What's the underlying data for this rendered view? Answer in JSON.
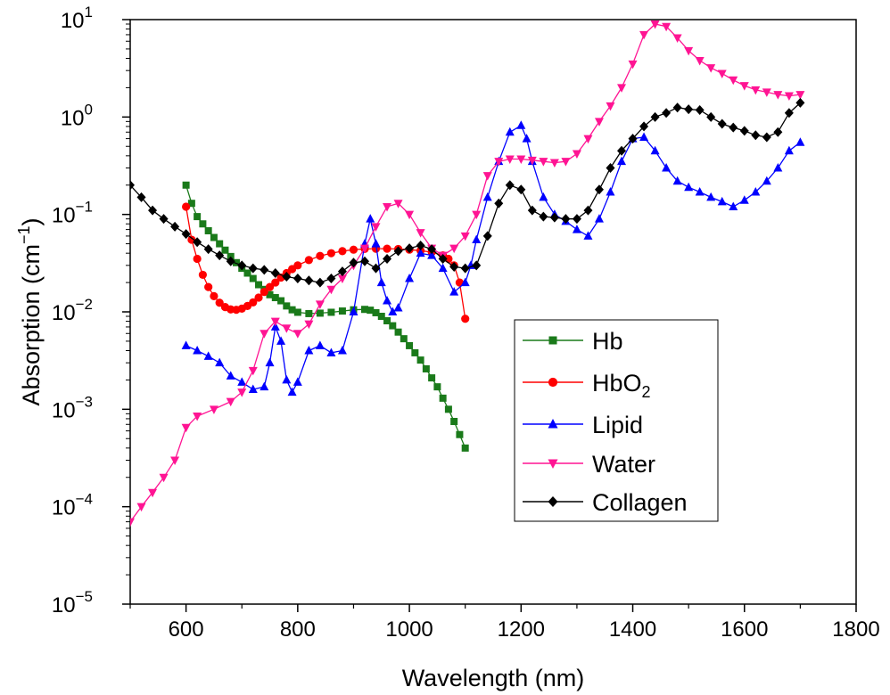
{
  "chart_data": {
    "type": "line",
    "yscale": "log",
    "xlabel": "Wavelength (nm)",
    "ylabel": {
      "base": "Absorption (cm",
      "exp": "−1",
      "close": ")"
    },
    "xlim": [
      500,
      1800
    ],
    "ylim_exp": [
      -5,
      1
    ],
    "x_ticks": [
      {
        "v": 600,
        "label": "600"
      },
      {
        "v": 800,
        "label": "800"
      },
      {
        "v": 1000,
        "label": "1000"
      },
      {
        "v": 1200,
        "label": "1200"
      },
      {
        "v": 1400,
        "label": "1400"
      },
      {
        "v": 1600,
        "label": "1600"
      },
      {
        "v": 1800,
        "label": "1800"
      }
    ],
    "y_ticks": [
      {
        "e": 1,
        "base": "10",
        "exp": "1"
      },
      {
        "e": 0,
        "base": "10",
        "exp": "0"
      },
      {
        "e": -1,
        "base": "10",
        "exp": "−1"
      },
      {
        "e": -2,
        "base": "10",
        "exp": "−2"
      },
      {
        "e": -3,
        "base": "10",
        "exp": "−3"
      },
      {
        "e": -4,
        "base": "10",
        "exp": "−4"
      },
      {
        "e": -5,
        "base": "10",
        "exp": "−5"
      }
    ],
    "series": [
      {
        "name": "Hb",
        "sub": "",
        "color": "#1a7a1a",
        "marker": "square",
        "points": [
          [
            600,
            0.2
          ],
          [
            610,
            0.13
          ],
          [
            620,
            0.095
          ],
          [
            630,
            0.08
          ],
          [
            640,
            0.068
          ],
          [
            650,
            0.058
          ],
          [
            660,
            0.05
          ],
          [
            670,
            0.043
          ],
          [
            680,
            0.037
          ],
          [
            690,
            0.032
          ],
          [
            700,
            0.028
          ],
          [
            710,
            0.025
          ],
          [
            720,
            0.022
          ],
          [
            730,
            0.019
          ],
          [
            740,
            0.017
          ],
          [
            750,
            0.015
          ],
          [
            760,
            0.014
          ],
          [
            770,
            0.013
          ],
          [
            780,
            0.0115
          ],
          [
            790,
            0.0105
          ],
          [
            800,
            0.0099
          ],
          [
            820,
            0.0096
          ],
          [
            840,
            0.0097
          ],
          [
            860,
            0.0099
          ],
          [
            880,
            0.0102
          ],
          [
            900,
            0.0105
          ],
          [
            920,
            0.0106
          ],
          [
            930,
            0.0104
          ],
          [
            940,
            0.0098
          ],
          [
            950,
            0.009
          ],
          [
            960,
            0.0081
          ],
          [
            970,
            0.0072
          ],
          [
            980,
            0.0062
          ],
          [
            990,
            0.0053
          ],
          [
            1000,
            0.0045
          ],
          [
            1010,
            0.0038
          ],
          [
            1020,
            0.0032
          ],
          [
            1030,
            0.0026
          ],
          [
            1040,
            0.0021
          ],
          [
            1050,
            0.0017
          ],
          [
            1060,
            0.0013
          ],
          [
            1070,
            0.001
          ],
          [
            1080,
            0.00075
          ],
          [
            1090,
            0.00055
          ],
          [
            1100,
            0.0004
          ]
        ]
      },
      {
        "name": "HbO",
        "sub": "2",
        "color": "#ff0000",
        "marker": "circle",
        "points": [
          [
            600,
            0.12
          ],
          [
            610,
            0.055
          ],
          [
            620,
            0.035
          ],
          [
            630,
            0.024
          ],
          [
            640,
            0.018
          ],
          [
            650,
            0.0145
          ],
          [
            660,
            0.0124
          ],
          [
            670,
            0.0112
          ],
          [
            680,
            0.0106
          ],
          [
            690,
            0.0105
          ],
          [
            700,
            0.0108
          ],
          [
            710,
            0.0115
          ],
          [
            720,
            0.0125
          ],
          [
            730,
            0.014
          ],
          [
            740,
            0.016
          ],
          [
            750,
            0.018
          ],
          [
            760,
            0.02
          ],
          [
            770,
            0.0225
          ],
          [
            780,
            0.025
          ],
          [
            790,
            0.0275
          ],
          [
            800,
            0.03
          ],
          [
            820,
            0.034
          ],
          [
            840,
            0.0375
          ],
          [
            860,
            0.04
          ],
          [
            880,
            0.042
          ],
          [
            900,
            0.0435
          ],
          [
            920,
            0.0442
          ],
          [
            940,
            0.0445
          ],
          [
            960,
            0.0445
          ],
          [
            980,
            0.0442
          ],
          [
            1000,
            0.0435
          ],
          [
            1020,
            0.0425
          ],
          [
            1040,
            0.041
          ],
          [
            1060,
            0.038
          ],
          [
            1070,
            0.035
          ],
          [
            1080,
            0.03
          ],
          [
            1090,
            0.02
          ],
          [
            1100,
            0.0085
          ]
        ]
      },
      {
        "name": "Lipid",
        "sub": "",
        "color": "#0000ff",
        "marker": "triangle-up",
        "points": [
          [
            600,
            0.0045
          ],
          [
            620,
            0.004
          ],
          [
            640,
            0.0035
          ],
          [
            660,
            0.003
          ],
          [
            680,
            0.0022
          ],
          [
            700,
            0.0019
          ],
          [
            720,
            0.0016
          ],
          [
            740,
            0.0017
          ],
          [
            750,
            0.003
          ],
          [
            760,
            0.007
          ],
          [
            770,
            0.005
          ],
          [
            780,
            0.002
          ],
          [
            790,
            0.0015
          ],
          [
            800,
            0.0019
          ],
          [
            820,
            0.004
          ],
          [
            840,
            0.0045
          ],
          [
            860,
            0.0038
          ],
          [
            880,
            0.004
          ],
          [
            900,
            0.01
          ],
          [
            920,
            0.05
          ],
          [
            930,
            0.09
          ],
          [
            940,
            0.05
          ],
          [
            950,
            0.02
          ],
          [
            960,
            0.013
          ],
          [
            970,
            0.01
          ],
          [
            980,
            0.011
          ],
          [
            1000,
            0.022
          ],
          [
            1020,
            0.04
          ],
          [
            1040,
            0.038
          ],
          [
            1060,
            0.028
          ],
          [
            1080,
            0.016
          ],
          [
            1100,
            0.02
          ],
          [
            1110,
            0.03
          ],
          [
            1120,
            0.055
          ],
          [
            1140,
            0.15
          ],
          [
            1160,
            0.35
          ],
          [
            1180,
            0.7
          ],
          [
            1200,
            0.82
          ],
          [
            1210,
            0.6
          ],
          [
            1220,
            0.35
          ],
          [
            1240,
            0.15
          ],
          [
            1260,
            0.1
          ],
          [
            1280,
            0.085
          ],
          [
            1300,
            0.07
          ],
          [
            1320,
            0.06
          ],
          [
            1340,
            0.09
          ],
          [
            1360,
            0.17
          ],
          [
            1380,
            0.35
          ],
          [
            1400,
            0.6
          ],
          [
            1420,
            0.62
          ],
          [
            1440,
            0.45
          ],
          [
            1460,
            0.3
          ],
          [
            1480,
            0.22
          ],
          [
            1500,
            0.19
          ],
          [
            1520,
            0.17
          ],
          [
            1540,
            0.15
          ],
          [
            1560,
            0.135
          ],
          [
            1580,
            0.12
          ],
          [
            1600,
            0.14
          ],
          [
            1620,
            0.17
          ],
          [
            1640,
            0.22
          ],
          [
            1660,
            0.3
          ],
          [
            1680,
            0.45
          ],
          [
            1700,
            0.55
          ]
        ]
      },
      {
        "name": "Water",
        "sub": "",
        "color": "#ff1493",
        "marker": "triangle-down",
        "points": [
          [
            500,
            7e-05
          ],
          [
            520,
            0.0001
          ],
          [
            540,
            0.00014
          ],
          [
            560,
            0.0002
          ],
          [
            580,
            0.0003
          ],
          [
            600,
            0.00065
          ],
          [
            620,
            0.00085
          ],
          [
            650,
            0.001
          ],
          [
            680,
            0.0012
          ],
          [
            700,
            0.0015
          ],
          [
            720,
            0.0025
          ],
          [
            740,
            0.006
          ],
          [
            760,
            0.008
          ],
          [
            780,
            0.0068
          ],
          [
            800,
            0.006
          ],
          [
            820,
            0.0075
          ],
          [
            840,
            0.012
          ],
          [
            860,
            0.017
          ],
          [
            880,
            0.022
          ],
          [
            900,
            0.03
          ],
          [
            920,
            0.045
          ],
          [
            940,
            0.075
          ],
          [
            960,
            0.12
          ],
          [
            980,
            0.13
          ],
          [
            1000,
            0.1
          ],
          [
            1020,
            0.065
          ],
          [
            1040,
            0.045
          ],
          [
            1060,
            0.038
          ],
          [
            1080,
            0.045
          ],
          [
            1100,
            0.06
          ],
          [
            1120,
            0.1
          ],
          [
            1140,
            0.25
          ],
          [
            1160,
            0.35
          ],
          [
            1180,
            0.37
          ],
          [
            1200,
            0.37
          ],
          [
            1220,
            0.36
          ],
          [
            1240,
            0.35
          ],
          [
            1260,
            0.34
          ],
          [
            1280,
            0.35
          ],
          [
            1300,
            0.42
          ],
          [
            1320,
            0.6
          ],
          [
            1340,
            0.9
          ],
          [
            1360,
            1.3
          ],
          [
            1380,
            2.0
          ],
          [
            1400,
            3.5
          ],
          [
            1420,
            7.0
          ],
          [
            1440,
            9.0
          ],
          [
            1460,
            8.5
          ],
          [
            1480,
            6.5
          ],
          [
            1500,
            4.8
          ],
          [
            1520,
            3.8
          ],
          [
            1540,
            3.2
          ],
          [
            1560,
            2.8
          ],
          [
            1580,
            2.4
          ],
          [
            1600,
            2.1
          ],
          [
            1620,
            1.9
          ],
          [
            1640,
            1.8
          ],
          [
            1660,
            1.7
          ],
          [
            1680,
            1.65
          ],
          [
            1700,
            1.7
          ]
        ]
      },
      {
        "name": "Collagen",
        "sub": "",
        "color": "#000000",
        "marker": "diamond",
        "points": [
          [
            500,
            0.2
          ],
          [
            520,
            0.15
          ],
          [
            540,
            0.11
          ],
          [
            560,
            0.09
          ],
          [
            580,
            0.075
          ],
          [
            600,
            0.063
          ],
          [
            620,
            0.052
          ],
          [
            640,
            0.044
          ],
          [
            660,
            0.038
          ],
          [
            680,
            0.033
          ],
          [
            700,
            0.03
          ],
          [
            720,
            0.028
          ],
          [
            740,
            0.027
          ],
          [
            760,
            0.025
          ],
          [
            780,
            0.023
          ],
          [
            800,
            0.022
          ],
          [
            820,
            0.021
          ],
          [
            840,
            0.02
          ],
          [
            860,
            0.022
          ],
          [
            880,
            0.026
          ],
          [
            900,
            0.032
          ],
          [
            920,
            0.033
          ],
          [
            940,
            0.028
          ],
          [
            960,
            0.035
          ],
          [
            980,
            0.042
          ],
          [
            1000,
            0.045
          ],
          [
            1020,
            0.048
          ],
          [
            1040,
            0.044
          ],
          [
            1060,
            0.035
          ],
          [
            1080,
            0.029
          ],
          [
            1100,
            0.028
          ],
          [
            1120,
            0.03
          ],
          [
            1140,
            0.06
          ],
          [
            1160,
            0.13
          ],
          [
            1180,
            0.2
          ],
          [
            1200,
            0.18
          ],
          [
            1220,
            0.11
          ],
          [
            1240,
            0.095
          ],
          [
            1260,
            0.093
          ],
          [
            1280,
            0.09
          ],
          [
            1300,
            0.09
          ],
          [
            1320,
            0.11
          ],
          [
            1340,
            0.18
          ],
          [
            1360,
            0.3
          ],
          [
            1380,
            0.45
          ],
          [
            1400,
            0.6
          ],
          [
            1420,
            0.8
          ],
          [
            1440,
            1.0
          ],
          [
            1460,
            1.1
          ],
          [
            1480,
            1.25
          ],
          [
            1500,
            1.2
          ],
          [
            1520,
            1.18
          ],
          [
            1540,
            1.0
          ],
          [
            1560,
            0.85
          ],
          [
            1580,
            0.78
          ],
          [
            1600,
            0.72
          ],
          [
            1620,
            0.65
          ],
          [
            1640,
            0.62
          ],
          [
            1660,
            0.7
          ],
          [
            1680,
            1.1
          ],
          [
            1700,
            1.4
          ]
        ]
      }
    ]
  }
}
